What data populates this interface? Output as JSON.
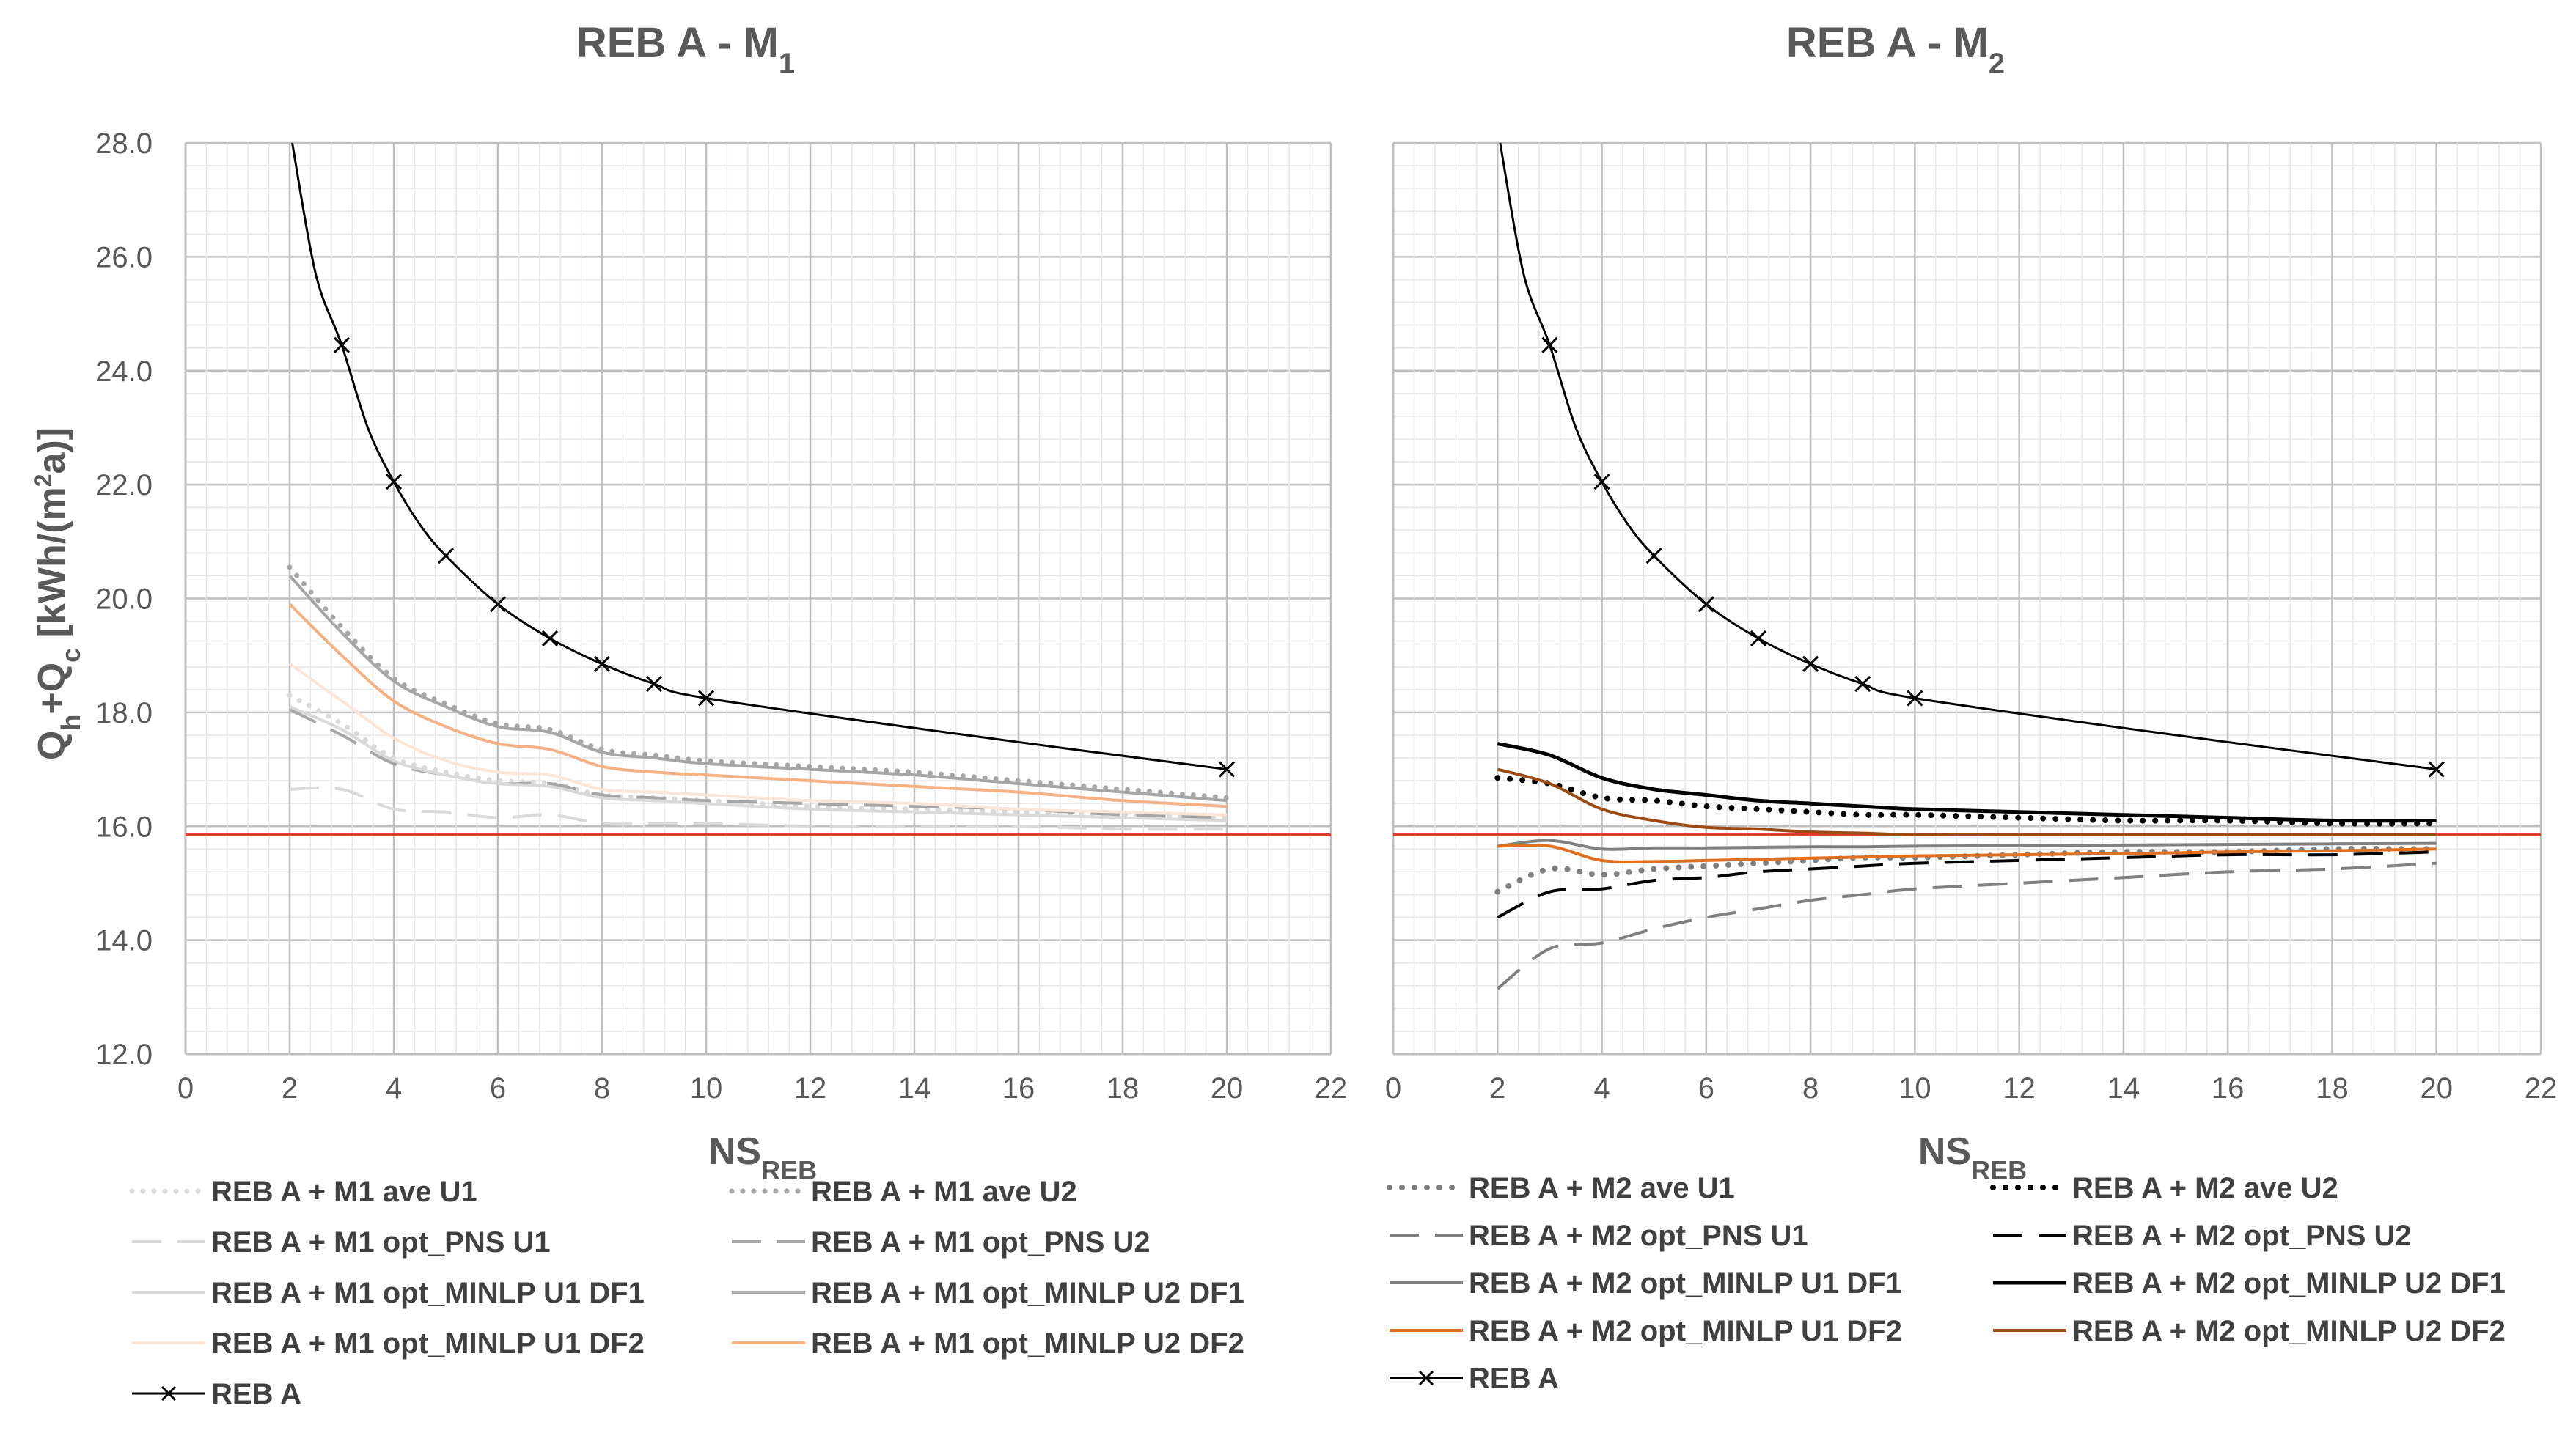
{
  "y_axis_label": "Qh+Qc [kWh/(m²a)]",
  "chart_data": [
    {
      "type": "line",
      "title": "REB A - M1",
      "title_main": "REB A - M",
      "title_sub": "1",
      "xlabel": "NS",
      "xlabel_sub": "REB",
      "ylabel": "Qh+Qc [kWh/(m²a)]",
      "xlim": [
        0,
        22
      ],
      "ylim": [
        12,
        28
      ],
      "xticks": [
        "0",
        "2",
        "4",
        "6",
        "8",
        "10",
        "12",
        "14",
        "16",
        "18",
        "20",
        "22"
      ],
      "yticks": [
        "12.0",
        "14.0",
        "16.0",
        "18.0",
        "20.0",
        "22.0",
        "24.0",
        "26.0",
        "28.0"
      ],
      "grid": true,
      "reference_line": {
        "y": 15.85,
        "color": "#e03c31"
      },
      "series": [
        {
          "name": "REB A + M1 ave U1",
          "color": "#d9d9d9",
          "dash": "dot",
          "width": 7,
          "x": [
            2,
            3,
            4,
            5,
            6,
            7,
            8,
            9,
            10,
            12,
            14,
            16,
            18,
            20
          ],
          "y": [
            18.3,
            17.8,
            17.2,
            16.95,
            16.8,
            16.75,
            16.55,
            16.5,
            16.45,
            16.35,
            16.3,
            16.25,
            16.2,
            16.15
          ]
        },
        {
          "name": "REB A + M1 ave U2",
          "color": "#a6a6a6",
          "dash": "dot",
          "width": 7,
          "x": [
            2,
            3,
            4,
            5,
            6,
            7,
            8,
            9,
            10,
            12,
            14,
            16,
            18,
            20
          ],
          "y": [
            20.55,
            19.5,
            18.6,
            18.15,
            17.8,
            17.7,
            17.35,
            17.25,
            17.15,
            17.05,
            16.95,
            16.8,
            16.65,
            16.5
          ]
        },
        {
          "name": "REB A + M1 opt_PNS U1",
          "color": "#d9d9d9",
          "dash": "dash",
          "width": 4,
          "x": [
            2,
            3,
            4,
            5,
            6,
            7,
            8,
            9,
            10,
            12,
            14,
            16,
            18,
            20
          ],
          "y": [
            16.65,
            16.65,
            16.3,
            16.25,
            16.15,
            16.2,
            16.05,
            16.05,
            16.05,
            16.0,
            16.0,
            16.0,
            15.95,
            15.95
          ]
        },
        {
          "name": "REB A + M1 opt_PNS U2",
          "color": "#a6a6a6",
          "dash": "dash",
          "width": 4,
          "x": [
            2,
            3,
            4,
            5,
            6,
            7,
            8,
            9,
            10,
            12,
            14,
            16,
            18,
            20
          ],
          "y": [
            18.05,
            17.6,
            17.1,
            16.9,
            16.75,
            16.75,
            16.55,
            16.5,
            16.45,
            16.4,
            16.35,
            16.3,
            16.2,
            16.15
          ]
        },
        {
          "name": "REB A + M1 opt_MINLP U1 DF1",
          "color": "#d9d9d9",
          "dash": "solid",
          "width": 4,
          "x": [
            2,
            3,
            4,
            5,
            6,
            7,
            8,
            9,
            10,
            12,
            14,
            16,
            18,
            20
          ],
          "y": [
            18.1,
            17.7,
            17.15,
            16.9,
            16.75,
            16.7,
            16.5,
            16.45,
            16.4,
            16.3,
            16.25,
            16.2,
            16.15,
            16.1
          ]
        },
        {
          "name": "REB A + M1 opt_MINLP U2 DF1",
          "color": "#a6a6a6",
          "dash": "solid",
          "width": 4,
          "x": [
            2,
            3,
            4,
            5,
            6,
            7,
            8,
            9,
            10,
            12,
            14,
            16,
            18,
            20
          ],
          "y": [
            20.4,
            19.4,
            18.55,
            18.1,
            17.75,
            17.65,
            17.3,
            17.2,
            17.1,
            17.0,
            16.9,
            16.75,
            16.6,
            16.45
          ]
        },
        {
          "name": "REB A + M1 opt_MINLP U1 DF2",
          "color": "#fbe5d6",
          "dash": "solid",
          "width": 4,
          "x": [
            2,
            3,
            4,
            5,
            6,
            7,
            8,
            9,
            10,
            12,
            14,
            16,
            18,
            20
          ],
          "y": [
            18.85,
            18.2,
            17.55,
            17.15,
            16.95,
            16.9,
            16.65,
            16.6,
            16.55,
            16.45,
            16.4,
            16.3,
            16.25,
            16.2
          ]
        },
        {
          "name": "REB A + M1 opt_MINLP U2 DF2",
          "color": "#f4b183",
          "dash": "solid",
          "width": 4,
          "x": [
            2,
            3,
            4,
            5,
            6,
            7,
            8,
            9,
            10,
            12,
            14,
            16,
            18,
            20
          ],
          "y": [
            19.9,
            19.0,
            18.2,
            17.75,
            17.45,
            17.35,
            17.05,
            16.95,
            16.9,
            16.8,
            16.7,
            16.6,
            16.45,
            16.35
          ]
        },
        {
          "name": "REB A",
          "color": "#000000",
          "dash": "solid",
          "width": 3,
          "marker": "x",
          "x": [
            2,
            3,
            4,
            5,
            6,
            7,
            8,
            9,
            10,
            20
          ],
          "y": [
            28.0,
            24.45,
            22.05,
            20.75,
            19.9,
            19.3,
            18.85,
            18.5,
            18.25,
            17.0
          ],
          "x_curve": [
            2.05,
            2.5,
            3,
            3.5,
            4,
            4.5,
            5,
            6,
            7,
            8,
            9,
            10,
            15,
            20
          ],
          "y_curve": [
            28.0,
            25.7,
            24.45,
            23.0,
            22.05,
            21.3,
            20.75,
            19.9,
            19.3,
            18.85,
            18.5,
            18.25,
            17.6,
            17.0
          ]
        }
      ]
    },
    {
      "type": "line",
      "title": "REB A - M2",
      "title_main": "REB A - M",
      "title_sub": "2",
      "xlabel": "NS",
      "xlabel_sub": "REB",
      "xlim": [
        0,
        22
      ],
      "ylim": [
        12,
        28
      ],
      "xticks": [
        "0",
        "2",
        "4",
        "6",
        "8",
        "10",
        "12",
        "14",
        "16",
        "18",
        "20",
        "22"
      ],
      "yticks": [
        "12.0",
        "14.0",
        "16.0",
        "18.0",
        "20.0",
        "22.0",
        "24.0",
        "26.0",
        "28.0"
      ],
      "grid": true,
      "reference_line": {
        "y": 15.85,
        "color": "#e03c31"
      },
      "series": [
        {
          "name": "REB A + M2 ave U1",
          "color": "#808080",
          "dash": "dot",
          "width": 8,
          "x": [
            2,
            3,
            4,
            5,
            6,
            7,
            8,
            9,
            10,
            12,
            14,
            16,
            18,
            20
          ],
          "y": [
            14.85,
            15.25,
            15.15,
            15.25,
            15.3,
            15.35,
            15.4,
            15.45,
            15.45,
            15.5,
            15.55,
            15.55,
            15.6,
            15.6
          ]
        },
        {
          "name": "REB A + M2 ave U2",
          "color": "#000000",
          "dash": "dot",
          "width": 8,
          "x": [
            2,
            3,
            4,
            5,
            6,
            7,
            8,
            9,
            10,
            12,
            14,
            16,
            18,
            20
          ],
          "y": [
            16.85,
            16.75,
            16.5,
            16.45,
            16.35,
            16.3,
            16.25,
            16.2,
            16.2,
            16.15,
            16.1,
            16.1,
            16.05,
            16.05
          ]
        },
        {
          "name": "REB A + M2 opt_PNS U1",
          "color": "#808080",
          "dash": "dash",
          "width": 4,
          "x": [
            2,
            3,
            4,
            5,
            6,
            7,
            8,
            9,
            10,
            12,
            14,
            16,
            18,
            20
          ],
          "y": [
            13.15,
            13.85,
            13.95,
            14.2,
            14.4,
            14.55,
            14.7,
            14.8,
            14.9,
            15.0,
            15.1,
            15.2,
            15.25,
            15.35
          ]
        },
        {
          "name": "REB A + M2 opt_PNS U2",
          "color": "#000000",
          "dash": "dash",
          "width": 4,
          "x": [
            2,
            3,
            4,
            5,
            6,
            7,
            8,
            9,
            10,
            12,
            14,
            16,
            18,
            20
          ],
          "y": [
            14.4,
            14.85,
            14.9,
            15.05,
            15.1,
            15.2,
            15.25,
            15.3,
            15.35,
            15.4,
            15.45,
            15.5,
            15.5,
            15.55
          ]
        },
        {
          "name": "REB A + M2 opt_MINLP U1 DF1",
          "color": "#808080",
          "dash": "solid",
          "width": 4,
          "x": [
            2,
            3,
            4,
            5,
            6,
            7,
            8,
            9,
            10,
            12,
            14,
            16,
            18,
            20
          ],
          "y": [
            15.65,
            15.75,
            15.6,
            15.62,
            15.62,
            15.63,
            15.64,
            15.64,
            15.65,
            15.66,
            15.67,
            15.68,
            15.69,
            15.7
          ]
        },
        {
          "name": "REB A + M2 opt_MINLP U2 DF1",
          "color": "#000000",
          "dash": "solid",
          "width": 5,
          "x": [
            2,
            3,
            4,
            5,
            6,
            7,
            8,
            9,
            10,
            12,
            14,
            16,
            18,
            20
          ],
          "y": [
            17.45,
            17.25,
            16.85,
            16.65,
            16.55,
            16.45,
            16.4,
            16.35,
            16.3,
            16.25,
            16.2,
            16.15,
            16.1,
            16.1
          ]
        },
        {
          "name": "REB A + M2 opt_MINLP U1 DF2",
          "color": "#e07020",
          "dash": "solid",
          "width": 4,
          "x": [
            2,
            3,
            4,
            5,
            6,
            7,
            8,
            9,
            10,
            12,
            14,
            16,
            18,
            20
          ],
          "y": [
            15.65,
            15.65,
            15.4,
            15.38,
            15.4,
            15.42,
            15.44,
            15.46,
            15.48,
            15.5,
            15.52,
            15.55,
            15.57,
            15.6
          ]
        },
        {
          "name": "REB A + M2 opt_MINLP U2 DF2",
          "color": "#9c4a12",
          "dash": "solid",
          "width": 4,
          "x": [
            2,
            3,
            4,
            5,
            6,
            7,
            8,
            9,
            10,
            12,
            14,
            16,
            18,
            20
          ],
          "y": [
            17.0,
            16.75,
            16.3,
            16.1,
            15.98,
            15.95,
            15.9,
            15.88,
            15.85,
            15.85,
            15.85,
            15.85,
            15.85,
            15.85
          ]
        },
        {
          "name": "REB A",
          "color": "#000000",
          "dash": "solid",
          "width": 3,
          "marker": "x",
          "x": [
            2,
            3,
            4,
            5,
            6,
            7,
            8,
            9,
            10,
            20
          ],
          "y": [
            28.0,
            24.45,
            22.05,
            20.75,
            19.9,
            19.3,
            18.85,
            18.5,
            18.25,
            17.0
          ],
          "x_curve": [
            2.05,
            2.5,
            3,
            3.5,
            4,
            4.5,
            5,
            6,
            7,
            8,
            9,
            10,
            15,
            20
          ],
          "y_curve": [
            28.0,
            25.7,
            24.45,
            23.0,
            22.05,
            21.3,
            20.75,
            19.9,
            19.3,
            18.85,
            18.5,
            18.25,
            17.6,
            17.0
          ]
        }
      ]
    }
  ]
}
